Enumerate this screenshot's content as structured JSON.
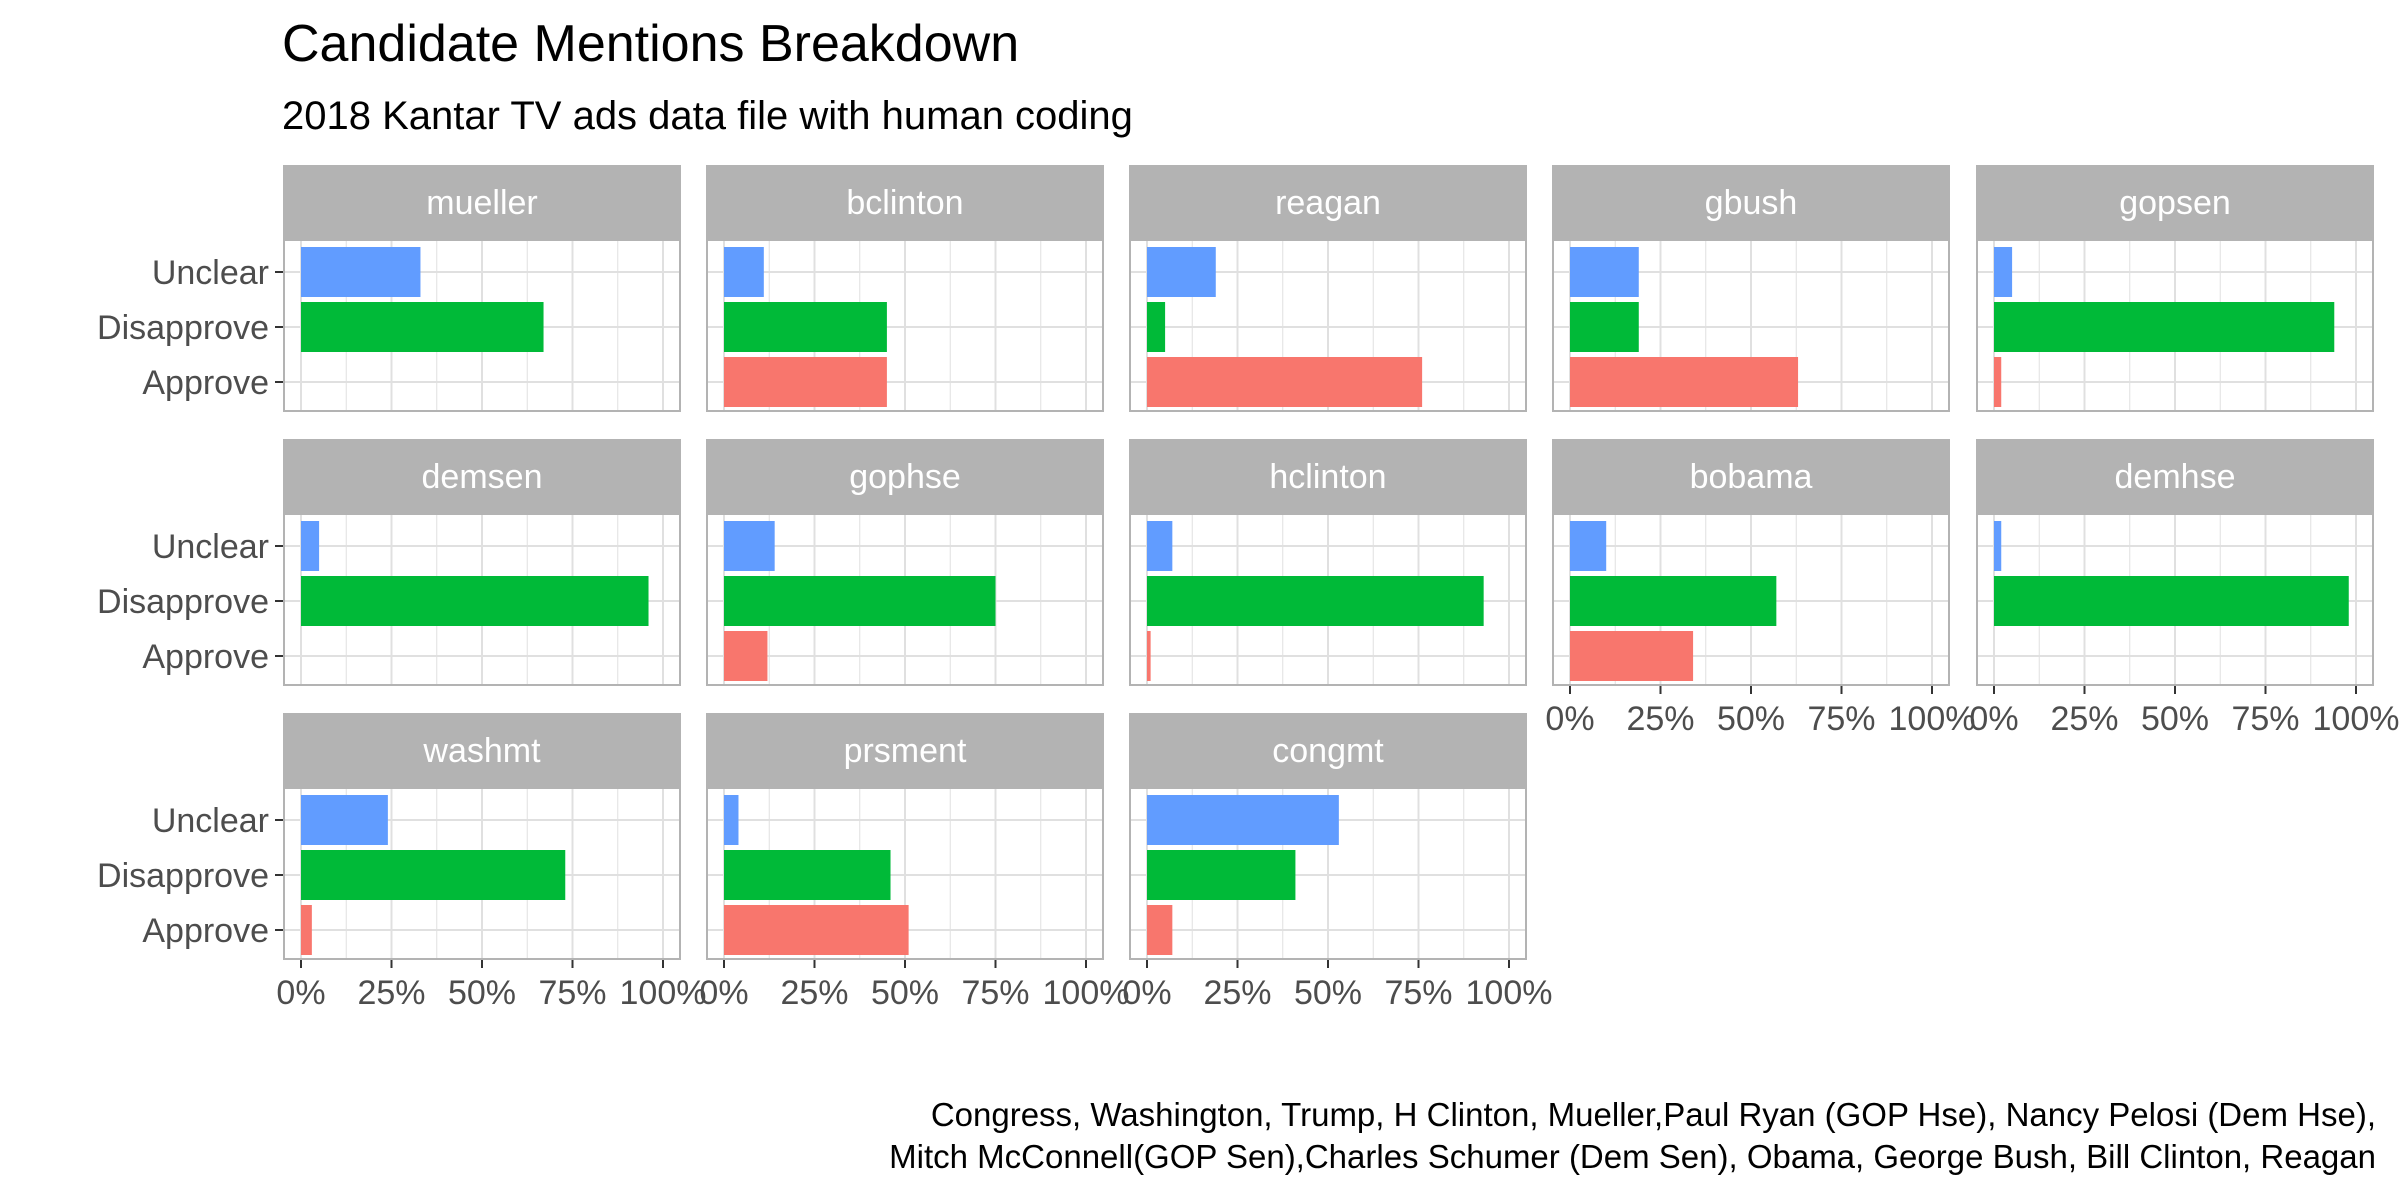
{
  "chart_data": {
    "type": "bar",
    "orientation": "horizontal",
    "faceted": true,
    "title": "Candidate Mentions Breakdown",
    "subtitle": "2018 Kantar TV ads data file with human coding",
    "caption_lines": [
      "Congress, Washington, Trump, H Clinton, Mueller,Paul Ryan (GOP Hse), Nancy Pelosi (Dem Hse),",
      "Mitch McConnell(GOP Sen),Charles Schumer (Dem Sen), Obama, George Bush, Bill Clinton, Reagan"
    ],
    "categories": [
      "Unclear",
      "Disapprove",
      "Approve"
    ],
    "category_colors": {
      "Unclear": "#619CFF",
      "Disapprove": "#00BA38",
      "Approve": "#F8766D"
    },
    "x_ticks": [
      "0%",
      "25%",
      "50%",
      "75%",
      "100%"
    ],
    "xlim": [
      0,
      100
    ],
    "grid": true,
    "theme": {
      "strip_fill": "#B3B3B3",
      "grid_color": "#E0E0E0",
      "panel_border": "#B3B3B3"
    },
    "panels": [
      {
        "name": "mueller",
        "values": {
          "Unclear": 33,
          "Disapprove": 67,
          "Approve": 0
        }
      },
      {
        "name": "bclinton",
        "values": {
          "Unclear": 11,
          "Disapprove": 45,
          "Approve": 45
        }
      },
      {
        "name": "reagan",
        "values": {
          "Unclear": 19,
          "Disapprove": 5,
          "Approve": 76
        }
      },
      {
        "name": "gbush",
        "values": {
          "Unclear": 19,
          "Disapprove": 19,
          "Approve": 63
        }
      },
      {
        "name": "gopsen",
        "values": {
          "Unclear": 5,
          "Disapprove": 94,
          "Approve": 2
        }
      },
      {
        "name": "demsen",
        "values": {
          "Unclear": 5,
          "Disapprove": 96,
          "Approve": 0
        }
      },
      {
        "name": "gophse",
        "values": {
          "Unclear": 14,
          "Disapprove": 75,
          "Approve": 12
        }
      },
      {
        "name": "hclinton",
        "values": {
          "Unclear": 7,
          "Disapprove": 93,
          "Approve": 1
        }
      },
      {
        "name": "bobama",
        "values": {
          "Unclear": 10,
          "Disapprove": 57,
          "Approve": 34
        }
      },
      {
        "name": "demhse",
        "values": {
          "Unclear": 2,
          "Disapprove": 98,
          "Approve": 0
        }
      },
      {
        "name": "washmt",
        "values": {
          "Unclear": 24,
          "Disapprove": 73,
          "Approve": 3
        }
      },
      {
        "name": "prsment",
        "values": {
          "Unclear": 4,
          "Disapprove": 46,
          "Approve": 51
        }
      },
      {
        "name": "congmt",
        "values": {
          "Unclear": 53,
          "Disapprove": 41,
          "Approve": 7
        }
      }
    ]
  }
}
